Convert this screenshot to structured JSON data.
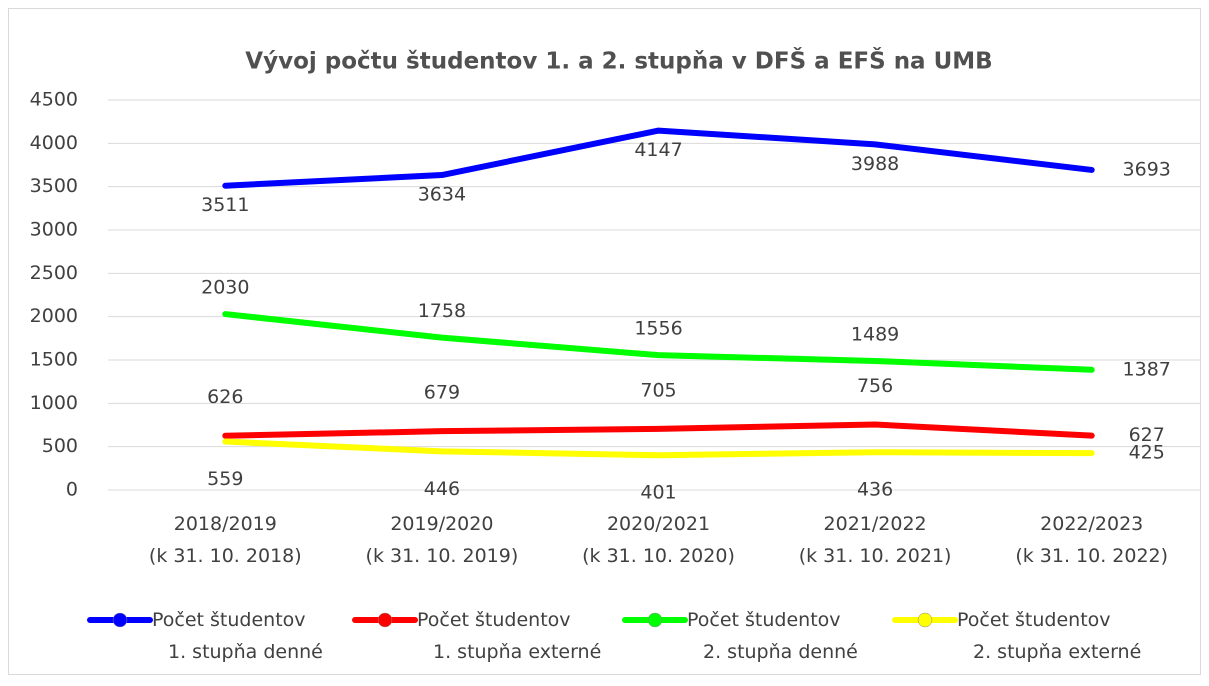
{
  "chart_data": {
    "type": "line",
    "title": "Vývoj počtu študentov 1. a 2. stupňa v DFŠ a EFŠ na UMB",
    "categories": [
      "2018/2019 (k 31. 10. 2018)",
      "2019/2020 (k 31. 10. 2019)",
      "2020/2021 (k 31. 10. 2020)",
      "2021/2022 (k 31. 10. 2021)",
      "2022/2023 (k 31. 10. 2022)"
    ],
    "series": [
      {
        "name": "Počet študentov 1. stupňa denné",
        "color": "#0000ff",
        "values": [
          3511,
          3634,
          4147,
          3988,
          3693
        ]
      },
      {
        "name": "Počet študentov 1. stupňa externé",
        "color": "#ff0000",
        "values": [
          626,
          679,
          705,
          756,
          627
        ]
      },
      {
        "name": "Počet študentov 2. stupňa denné",
        "color": "#00ff00",
        "values": [
          2030,
          1758,
          1556,
          1489,
          1387
        ]
      },
      {
        "name": "Počet študentov 2. stupňa externé",
        "color": "#ffff00",
        "values": [
          559,
          446,
          401,
          436,
          425
        ]
      }
    ],
    "ylim": [
      0,
      4500
    ],
    "yticks": [
      0,
      500,
      1000,
      1500,
      2000,
      2500,
      3000,
      3500,
      4000,
      4500
    ],
    "grid": true,
    "legend": "bottom"
  }
}
